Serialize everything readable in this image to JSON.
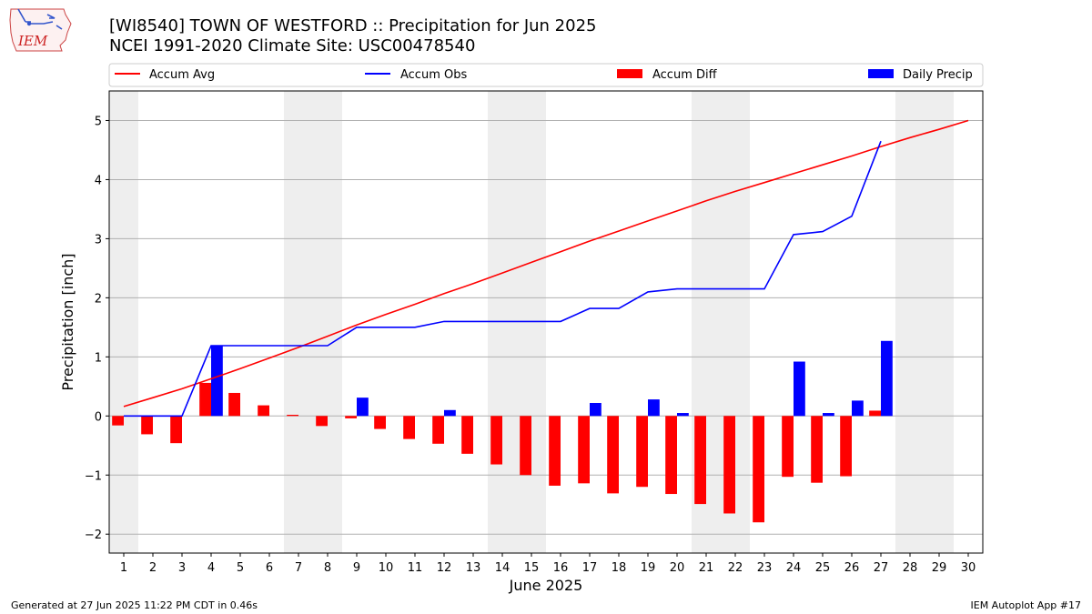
{
  "header": {
    "title_line1": "[WI8540] TOWN OF WESTFORD :: Precipitation for Jun 2025",
    "title_line2": "NCEI 1991-2020 Climate Site: USC00478540",
    "logo_text": "IEM"
  },
  "footer": {
    "generated": "Generated at 27 Jun 2025 11:22 PM CDT in 0.46s",
    "app": "IEM Autoplot App #17"
  },
  "colors": {
    "accum_avg": "#ff0000",
    "accum_obs": "#0000ff",
    "accum_diff": "#ff0000",
    "daily_precip": "#0000ff",
    "weekend_shade": "#eeeeee",
    "grid": "#b0b0b0"
  },
  "chart_data": {
    "type": "bar",
    "xlabel": "June 2025",
    "ylabel": "Precipitation [inch]",
    "xlim": [
      0.5,
      30.5
    ],
    "ylim": [
      -2.32,
      5.5
    ],
    "yticks": [
      -2,
      -1,
      0,
      1,
      2,
      3,
      4,
      5
    ],
    "ytick_labels": [
      "−2",
      "−1",
      "0",
      "1",
      "2",
      "3",
      "4",
      "5"
    ],
    "grid": "horizontal",
    "legend_placement": "top",
    "days": [
      1,
      2,
      3,
      4,
      5,
      6,
      7,
      8,
      9,
      10,
      11,
      12,
      13,
      14,
      15,
      16,
      17,
      18,
      19,
      20,
      21,
      22,
      23,
      24,
      25,
      26,
      27,
      28,
      29,
      30
    ],
    "weekend_days": [
      1,
      7,
      8,
      14,
      15,
      21,
      22,
      28,
      29
    ],
    "legend": [
      {
        "label": "Accum Avg",
        "kind": "line",
        "color": "#ff0000"
      },
      {
        "label": "Accum Obs",
        "kind": "line",
        "color": "#0000ff"
      },
      {
        "label": "Accum Diff",
        "kind": "bar",
        "color": "#ff0000"
      },
      {
        "label": "Daily Precip",
        "kind": "bar",
        "color": "#0000ff"
      }
    ],
    "series": [
      {
        "name": "Accum Avg",
        "kind": "line",
        "color": "#ff0000",
        "x": [
          1,
          2,
          3,
          4,
          5,
          6,
          7,
          8,
          9,
          10,
          11,
          12,
          13,
          14,
          15,
          16,
          17,
          18,
          19,
          20,
          21,
          22,
          23,
          24,
          25,
          26,
          27,
          28,
          29,
          30
        ],
        "values": [
          0.16,
          0.31,
          0.46,
          0.63,
          0.8,
          0.98,
          1.16,
          1.35,
          1.54,
          1.72,
          1.89,
          2.07,
          2.24,
          2.42,
          2.6,
          2.78,
          2.96,
          3.13,
          3.3,
          3.47,
          3.64,
          3.8,
          3.95,
          4.1,
          4.25,
          4.4,
          4.56,
          4.71,
          4.85,
          5.0
        ]
      },
      {
        "name": "Accum Obs",
        "kind": "line",
        "color": "#0000ff",
        "x": [
          1,
          2,
          3,
          4,
          5,
          6,
          7,
          8,
          9,
          10,
          11,
          12,
          13,
          14,
          15,
          16,
          17,
          18,
          19,
          20,
          21,
          22,
          23,
          24,
          25,
          26,
          27
        ],
        "values": [
          0,
          0,
          0,
          1.19,
          1.19,
          1.19,
          1.19,
          1.19,
          1.5,
          1.5,
          1.5,
          1.6,
          1.6,
          1.6,
          1.6,
          1.6,
          1.82,
          1.82,
          2.1,
          2.15,
          2.15,
          2.15,
          2.15,
          3.07,
          3.12,
          3.38,
          4.65
        ]
      },
      {
        "name": "Accum Diff",
        "kind": "bar",
        "color": "#ff0000",
        "x": [
          1,
          2,
          3,
          4,
          5,
          6,
          7,
          8,
          9,
          10,
          11,
          12,
          13,
          14,
          15,
          16,
          17,
          18,
          19,
          20,
          21,
          22,
          23,
          24,
          25,
          26,
          27
        ],
        "values": [
          -0.16,
          -0.31,
          -0.46,
          0.56,
          0.39,
          0.18,
          0.02,
          -0.17,
          -0.04,
          -0.22,
          -0.39,
          -0.47,
          -0.64,
          -0.82,
          -1.0,
          -1.18,
          -1.14,
          -1.31,
          -1.2,
          -1.32,
          -1.49,
          -1.65,
          -1.8,
          -1.03,
          -1.13,
          -1.02,
          0.09
        ]
      },
      {
        "name": "Daily Precip",
        "kind": "bar",
        "color": "#0000ff",
        "x": [
          1,
          2,
          3,
          4,
          5,
          6,
          7,
          8,
          9,
          10,
          11,
          12,
          13,
          14,
          15,
          16,
          17,
          18,
          19,
          20,
          21,
          22,
          23,
          24,
          25,
          26,
          27
        ],
        "values": [
          0,
          0,
          0,
          1.19,
          0,
          0,
          0,
          0,
          0.31,
          0,
          0,
          0.1,
          0,
          0,
          0,
          0,
          0.22,
          0,
          0.28,
          0.05,
          0,
          0,
          0,
          0.92,
          0.05,
          0.26,
          1.27
        ]
      }
    ]
  }
}
